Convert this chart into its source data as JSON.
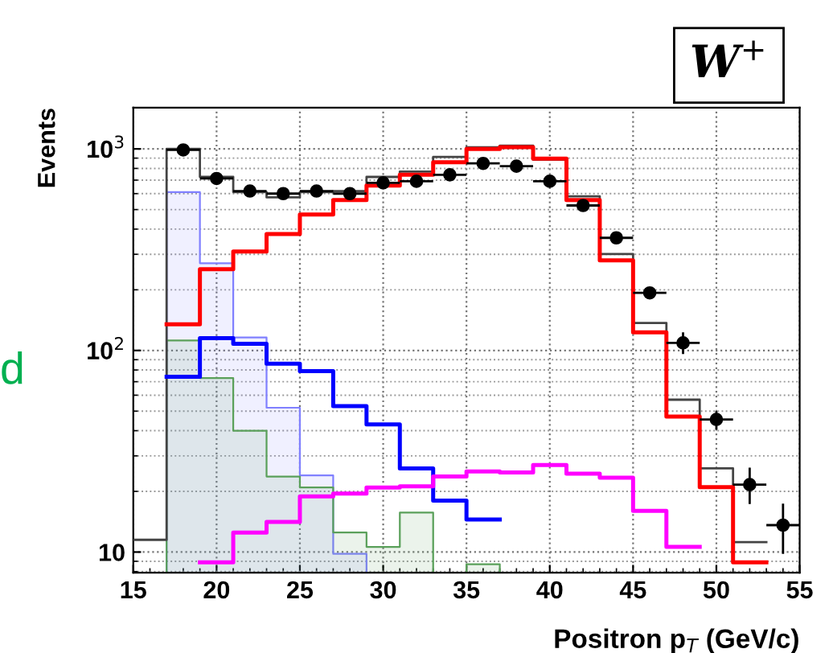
{
  "chart_data": {
    "type": "step",
    "xlabel": "Positron p$_{T}$ (GeV/c)",
    "ylabel": "Events",
    "annotations": [
      "W$^{+}$",
      "d"
    ],
    "x": [
      15,
      17,
      19,
      21,
      23,
      25,
      27,
      29,
      31,
      33,
      35,
      37,
      39,
      41,
      43,
      45,
      47,
      49,
      51,
      53
    ],
    "series": [
      {
        "type": "area",
        "color": "#8080ff",
        "values": [
          null,
          611,
          271,
          116,
          52,
          24,
          9.8,
          9.8,
          null,
          null,
          null,
          null,
          null,
          null,
          null,
          null,
          null,
          null,
          null,
          null
        ]
      },
      {
        "type": "area",
        "color": "#5aa05a",
        "values": [
          null,
          112,
          73,
          40,
          23.7,
          20.9,
          12.5,
          10.6,
          15.7,
          7.9,
          8.7,
          8.7,
          null,
          null,
          null,
          null,
          null,
          null,
          null,
          null
        ]
      },
      {
        "color": "#444444",
        "values": [
          11.5,
          1000,
          726,
          611,
          575,
          611,
          618,
          726,
          772,
          912,
          1019,
          1038,
          884,
          582,
          301,
          137,
          57,
          26,
          11.2,
          11.2
        ]
      },
      {
        "color": "#ff0000",
        "values": [
          null,
          135,
          253,
          310,
          378,
          472,
          557,
          658,
          744,
          858,
          1000,
          1019,
          895,
          557,
          280,
          123,
          47,
          21,
          8.9,
          8.9
        ]
      },
      {
        "color": "#0000ff",
        "values": [
          null,
          74,
          115,
          108,
          86,
          79,
          53,
          43,
          26,
          18,
          14.5,
          14.5,
          null,
          null,
          null,
          null,
          null,
          null,
          null,
          null
        ]
      },
      {
        "color": "#ff00ff",
        "values": [
          null,
          null,
          8.9,
          12.5,
          14.1,
          18.9,
          19.5,
          20.9,
          21.2,
          23.7,
          25.1,
          24.8,
          27,
          24.5,
          23.4,
          16,
          10.6,
          10.6,
          null,
          null
        ]
      },
      {
        "type": "scatter",
        "marker": "circle",
        "color": "#000000",
        "x": [
          18,
          20,
          22,
          24,
          26,
          28,
          30,
          32,
          34,
          36,
          38,
          40,
          42,
          44,
          46,
          48,
          50,
          52,
          54
        ],
        "values": [
          988,
          713,
          618,
          600,
          618,
          600,
          678,
          691,
          744,
          847,
          821,
          691,
          524,
          362,
          193,
          109,
          45.5,
          21.6,
          13.6
        ],
        "errors": [
          null,
          null,
          null,
          null,
          null,
          null,
          null,
          null,
          null,
          null,
          null,
          null,
          null,
          null,
          null,
          [
            96,
            123
          ],
          [
            40.5,
            50
          ],
          [
            17.3,
            26.2
          ],
          [
            9.8,
            17.4
          ]
        ],
        "xerrors": [
          1,
          1,
          1,
          1,
          1,
          1,
          1,
          1,
          1,
          1,
          1,
          1,
          1,
          1,
          1,
          1,
          1,
          1,
          1
        ]
      }
    ],
    "xlim": [
      15,
      55
    ],
    "xticks": [
      15,
      20,
      25,
      30,
      35,
      40,
      45,
      50,
      55
    ],
    "log": true,
    "ylim": [
      7.9,
      1600
    ],
    "yticks": [
      {
        "value": 10,
        "label": "10"
      },
      {
        "value": 100,
        "label": "10$^{2}$"
      },
      {
        "value": 1000,
        "label": "10$^{3}$"
      }
    ],
    "grid": true
  }
}
